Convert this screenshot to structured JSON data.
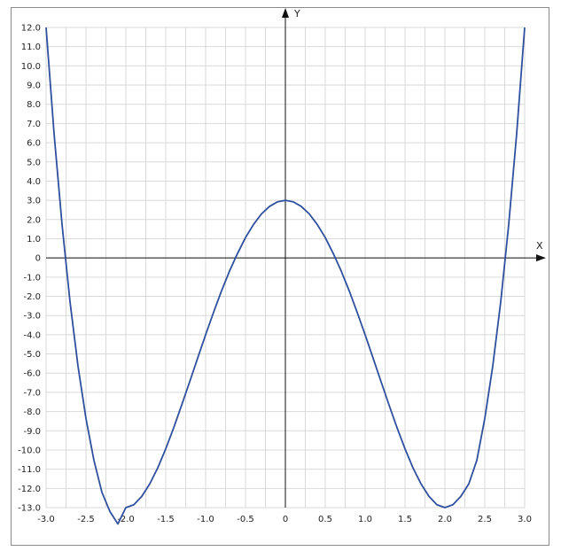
{
  "chart_data": {
    "type": "line",
    "title": "",
    "xlabel": "X",
    "ylabel": "Y",
    "xlim": [
      -3.0,
      3.0
    ],
    "ylim": [
      -13.0,
      12.0
    ],
    "grid": true,
    "x_ticks": [
      "-3.0",
      "-2.5",
      "-2.0",
      "-1.5",
      "-1.0",
      "-0.5",
      "0",
      "0.5",
      "1.0",
      "1.5",
      "2.0",
      "2.5",
      "3.0"
    ],
    "y_ticks": [
      "12.0",
      "11.0",
      "10.0",
      "9.0",
      "8.0",
      "7.0",
      "6.0",
      "5.0",
      "4.0",
      "3.0",
      "2.0",
      "1.0",
      "0",
      "-1.0",
      "-2.0",
      "-3.0",
      "-4.0",
      "-5.0",
      "-6.0",
      "-7.0",
      "-8.0",
      "-9.0",
      "-10.0",
      "-11.0",
      "-12.0",
      "-13.0"
    ],
    "series": [
      {
        "color": "#2f4f9f",
        "x": [
          -3.0,
          -2.9,
          -2.8,
          -2.7,
          -2.6,
          -2.5,
          -2.4,
          -2.3,
          -2.2,
          -2.1,
          -2.0,
          -1.9,
          -1.8,
          -1.7,
          -1.6,
          -1.5,
          -1.4,
          -1.3,
          -1.2,
          -1.1,
          -1.0,
          -0.9,
          -0.8,
          -0.7,
          -0.6,
          -0.5,
          -0.4,
          -0.3,
          -0.2,
          -0.1,
          0.0,
          0.1,
          0.2,
          0.3,
          0.4,
          0.5,
          0.6,
          0.7,
          0.8,
          0.9,
          1.0,
          1.1,
          1.2,
          1.3,
          1.4,
          1.5,
          1.6,
          1.7,
          1.8,
          1.9,
          2.0,
          2.1,
          2.2,
          2.3,
          2.4,
          2.5,
          2.6,
          2.7,
          2.8,
          2.9,
          3.0
        ],
        "y": [
          12.0,
          6.48,
          1.74,
          -2.28,
          -5.63,
          -8.36,
          -10.54,
          -12.2,
          -13.2,
          -13.85,
          -13.0,
          -12.85,
          -12.41,
          -11.76,
          -10.93,
          -9.94,
          -8.84,
          -7.66,
          -6.45,
          -5.22,
          -4.0,
          -2.83,
          -1.71,
          -0.68,
          0.23,
          1.06,
          1.74,
          2.29,
          2.68,
          2.92,
          3.0,
          2.92,
          2.68,
          2.29,
          1.74,
          1.06,
          0.23,
          -0.68,
          -1.71,
          -2.83,
          -4.0,
          -5.22,
          -6.45,
          -7.66,
          -8.84,
          -9.94,
          -10.93,
          -11.76,
          -12.41,
          -12.85,
          -13.0,
          -12.85,
          -12.41,
          -11.76,
          -10.54,
          -8.36,
          -5.63,
          -2.28,
          1.74,
          6.48,
          12.0
        ]
      }
    ]
  }
}
